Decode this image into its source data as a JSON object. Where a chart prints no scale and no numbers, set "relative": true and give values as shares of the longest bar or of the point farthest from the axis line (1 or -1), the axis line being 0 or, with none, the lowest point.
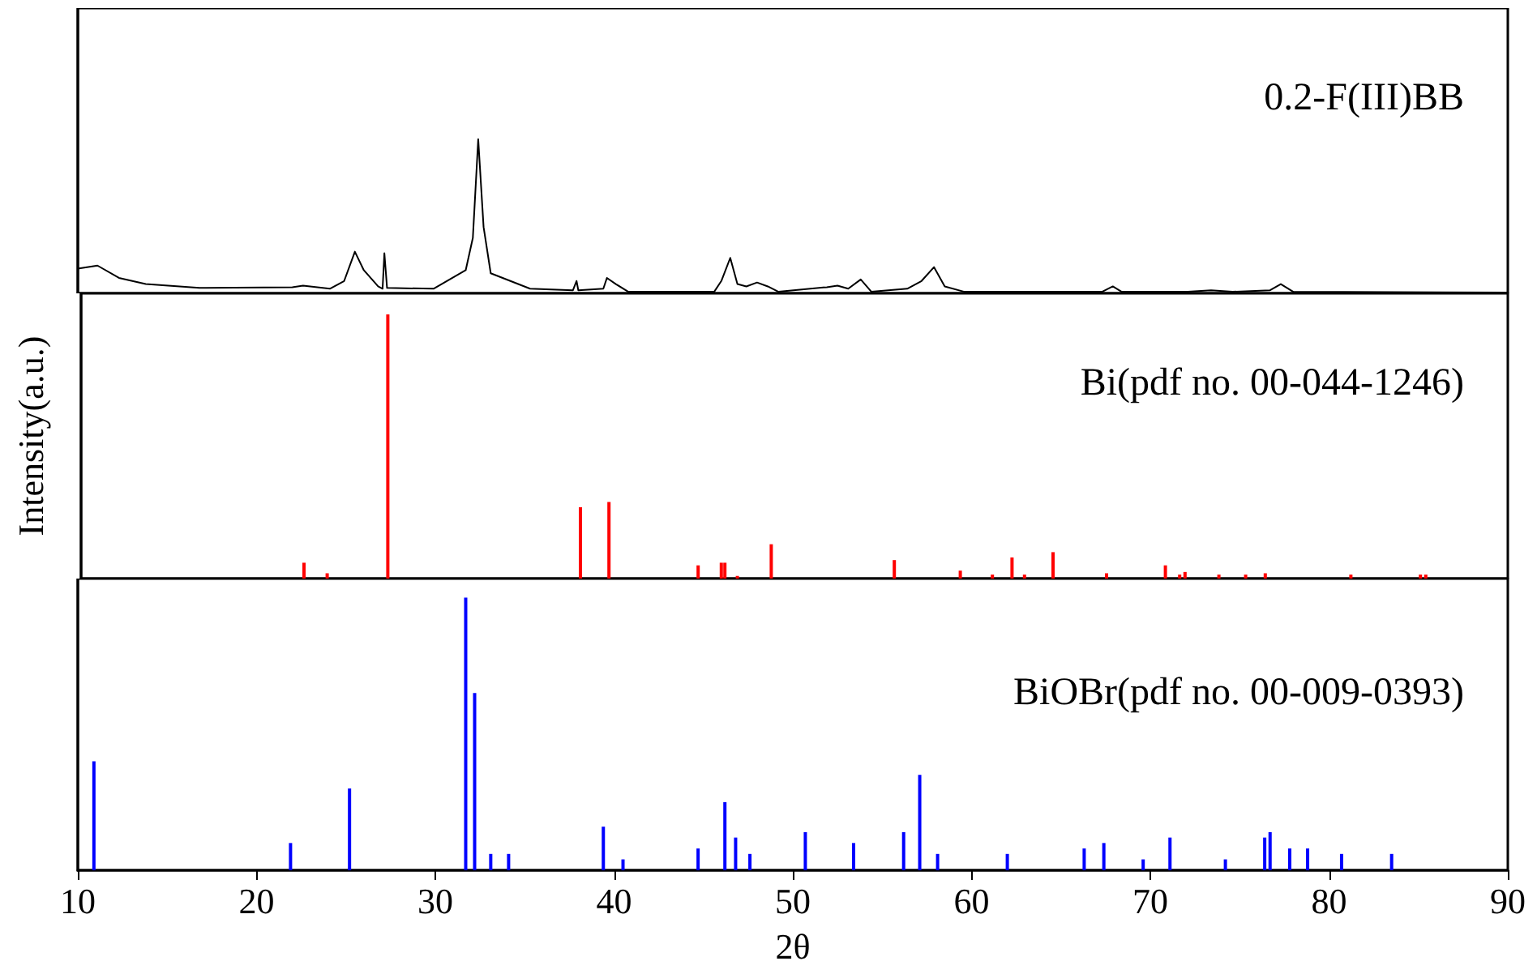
{
  "chart_data": [
    {
      "type": "line",
      "title": "0.2-F(III)BB",
      "relative": true,
      "xlim": [
        10,
        90
      ],
      "xticks": [
        10,
        20,
        30,
        40,
        50,
        60,
        70,
        80,
        90
      ],
      "tick_labels": false,
      "grid": false,
      "marker": "none",
      "series": [
        {
          "color": "#000000",
          "x": [
            10.0,
            11.1,
            12.3,
            13.8,
            16.8,
            22.0,
            22.6,
            24.1,
            24.9,
            25.5,
            26.0,
            26.8,
            27.05,
            27.15,
            27.3,
            29.9,
            31.7,
            32.1,
            32.4,
            32.7,
            33.1,
            34.2,
            35.3,
            37.7,
            37.9,
            38.0,
            39.4,
            39.6,
            40.1,
            40.8,
            45.6,
            46.0,
            46.5,
            46.9,
            47.4,
            48.0,
            48.6,
            49.2,
            51.9,
            52.5,
            53.1,
            53.8,
            54.4,
            56.4,
            57.2,
            57.9,
            58.5,
            59.6,
            67.3,
            67.9,
            68.4,
            72.1,
            73.4,
            74.6,
            76.7,
            77.3,
            78.0,
            90
          ],
          "values": [
            0.16,
            0.18,
            0.1,
            0.06,
            0.035,
            0.04,
            0.05,
            0.03,
            0.08,
            0.27,
            0.15,
            0.045,
            0.03,
            0.26,
            0.035,
            0.03,
            0.15,
            0.36,
            1,
            0.43,
            0.13,
            0.08,
            0.03,
            0.02,
            0.08,
            0.02,
            0.03,
            0.1,
            0.06,
            0.01,
            0.01,
            0.08,
            0.23,
            0.06,
            0.045,
            0.07,
            0.045,
            0.01,
            0.04,
            0.05,
            0.03,
            0.09,
            0.01,
            0.03,
            0.08,
            0.17,
            0.045,
            0.01,
            0.01,
            0.045,
            0.01,
            0.01,
            0.02,
            0.01,
            0.02,
            0.06,
            0.01,
            0.005
          ]
        }
      ]
    },
    {
      "type": "bar",
      "title": "Bi(pdf no. 00-044-1246)",
      "ylabel": "Intensity(a.u.)",
      "relative": true,
      "xlim": [
        10,
        90
      ],
      "xticks": [
        10,
        20,
        30,
        40,
        50,
        60,
        70,
        80,
        90
      ],
      "tick_labels": false,
      "grid": false,
      "series": [
        {
          "color": "#ff0000",
          "x": [
            22.5,
            23.8,
            27.2,
            38.0,
            39.6,
            44.6,
            45.9,
            46.1,
            46.8,
            48.7,
            55.6,
            59.3,
            61.1,
            62.2,
            62.9,
            64.5,
            67.5,
            70.8,
            71.6,
            71.9,
            73.8,
            75.3,
            76.4,
            81.2,
            85.1,
            85.4
          ],
          "values": [
            0.06,
            0.02,
            1,
            0.27,
            0.29,
            0.05,
            0.06,
            0.06,
            0.01,
            0.13,
            0.07,
            0.03,
            0.015,
            0.08,
            0.015,
            0.1,
            0.02,
            0.05,
            0.015,
            0.025,
            0.015,
            0.015,
            0.02,
            0.015,
            0.015,
            0.015
          ]
        }
      ]
    },
    {
      "type": "bar",
      "title": "BiOBr(pdf no. 00-009-0393)",
      "xlabel": "2θ",
      "relative": true,
      "xlim": [
        10,
        90
      ],
      "xticks": [
        10,
        20,
        30,
        40,
        50,
        60,
        70,
        80,
        90
      ],
      "tick_labels": "x",
      "grid": false,
      "series": [
        {
          "color": "#0000ff",
          "x": [
            10.9,
            21.9,
            25.2,
            31.7,
            32.2,
            33.1,
            34.1,
            39.4,
            40.5,
            44.7,
            46.2,
            46.8,
            47.6,
            50.7,
            53.4,
            56.2,
            57.1,
            58.1,
            62.0,
            66.3,
            67.4,
            69.6,
            71.1,
            74.2,
            76.4,
            76.7,
            77.8,
            78.8,
            80.7,
            83.5
          ],
          "values": [
            0.4,
            0.1,
            0.3,
            1,
            0.65,
            0.06,
            0.06,
            0.16,
            0.04,
            0.08,
            0.25,
            0.12,
            0.06,
            0.14,
            0.1,
            0.14,
            0.35,
            0.06,
            0.06,
            0.08,
            0.1,
            0.04,
            0.12,
            0.04,
            0.12,
            0.14,
            0.08,
            0.08,
            0.06,
            0.06
          ]
        }
      ]
    }
  ]
}
